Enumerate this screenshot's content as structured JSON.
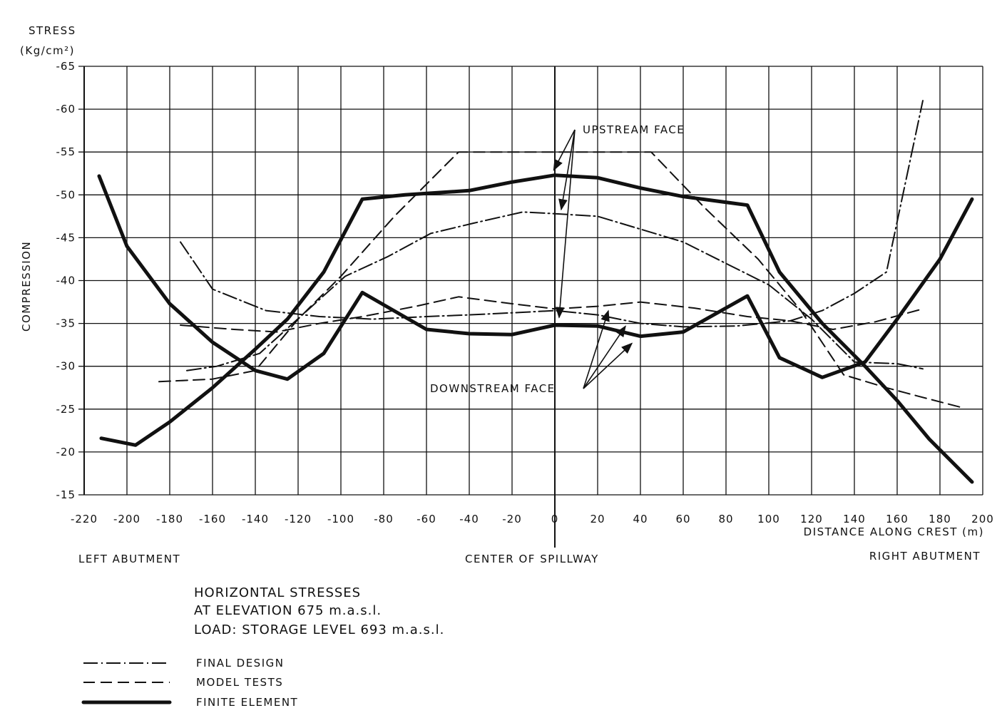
{
  "chart_data": {
    "type": "line",
    "ylabel_top": "STRESS",
    "ylabel_unit": "(Kg/cm²)",
    "ylabel_side": "COMPRESSION",
    "xlabel": "DISTANCE ALONG CREST (m)",
    "xlim": [
      -220,
      200
    ],
    "ylim": [
      -15,
      -65
    ],
    "x_ticks": [
      -220,
      -200,
      -180,
      -160,
      -140,
      -120,
      -100,
      -80,
      -60,
      -40,
      -20,
      0,
      20,
      40,
      60,
      80,
      100,
      120,
      140,
      160,
      180,
      200
    ],
    "y_ticks": [
      -65,
      -60,
      -55,
      -50,
      -45,
      -40,
      -35,
      -30,
      -25,
      -20,
      -15
    ],
    "x_tick_labels": [
      "-220",
      "-200",
      "-180",
      "-160",
      "-140",
      "-120",
      "-100",
      "-80",
      "-60",
      "-40",
      "-20",
      "0",
      "20",
      "40",
      "60",
      "80",
      "100",
      "120",
      "140",
      "160",
      "180",
      "200"
    ],
    "y_tick_labels": [
      "-65",
      "-60",
      "-55",
      "-50",
      "-45",
      "-40",
      "-35",
      "-30",
      "-25",
      "-20",
      "-15"
    ],
    "grid": true,
    "annotations": {
      "left_abutment": "LEFT ABUTMENT",
      "center": "CENTER OF SPILLWAY",
      "right_abutment": "RIGHT ABUTMENT",
      "upstream": "UPSTREAM FACE",
      "downstream": "DOWNSTREAM FACE"
    },
    "caption": [
      "HORIZONTAL STRESSES",
      "AT ELEVATION 675 m.a.s.l.",
      "LOAD: STORAGE LEVEL 693 m.a.s.l."
    ],
    "legend": [
      {
        "label": "FINAL DESIGN",
        "style": "dashdot"
      },
      {
        "label": "MODEL TESTS",
        "style": "dashed"
      },
      {
        "label": "FINITE ELEMENT",
        "style": "solid"
      }
    ],
    "series": [
      {
        "name": "FINAL DESIGN",
        "face": "upstream",
        "style": "dashdot",
        "x": [
          -175,
          -160,
          -135,
          -110,
          -85,
          -60,
          -40,
          -15,
          0,
          20,
          40,
          60,
          85,
          110,
          125,
          140,
          155,
          172
        ],
        "y": [
          -44.5,
          -39,
          -36.5,
          -35.8,
          -35.5,
          -35.8,
          -36,
          -36.3,
          -36.5,
          -36,
          -35,
          -34.6,
          -34.7,
          -35.3,
          -36.5,
          -38.5,
          -41,
          -61
        ]
      },
      {
        "name": "FINAL DESIGN",
        "face": "downstream",
        "style": "dashdot",
        "x": [
          -172,
          -158,
          -138,
          -118,
          -98,
          -78,
          -58,
          -38,
          -15,
          0,
          20,
          40,
          60,
          80,
          100,
          120,
          140,
          160,
          172
        ],
        "y": [
          -29.5,
          -30,
          -31.5,
          -36,
          -40.5,
          -42.8,
          -45.5,
          -46.7,
          -48,
          -47.8,
          -47.5,
          -46,
          -44.5,
          -42,
          -39.5,
          -35.5,
          -30.5,
          -30.3,
          -29.7
        ]
      },
      {
        "name": "MODEL TESTS",
        "face": "upstream",
        "style": "dashed",
        "x": [
          -185,
          -160,
          -140,
          -120,
          -100,
          -75,
          -45,
          0,
          45,
          70,
          95,
          115,
          135,
          155,
          170,
          190
        ],
        "y": [
          -28.2,
          -28.5,
          -29.5,
          -35.5,
          -40.5,
          -47.5,
          -55,
          -55,
          -55,
          -48.5,
          -42.5,
          -36.5,
          -29,
          -27.5,
          -26.5,
          -25.2
        ]
      },
      {
        "name": "MODEL TESTS",
        "face": "downstream",
        "style": "dashed",
        "x": [
          -175,
          -150,
          -130,
          -110,
          -90,
          -65,
          -45,
          -20,
          0,
          20,
          40,
          65,
          90,
          110,
          130,
          150,
          172
        ],
        "y": [
          -34.8,
          -34.3,
          -34,
          -35,
          -35.8,
          -37,
          -38.1,
          -37.3,
          -36.7,
          -37,
          -37.5,
          -36.8,
          -35.8,
          -35.3,
          -34.3,
          -35.2,
          -36.7
        ]
      },
      {
        "name": "FINITE ELEMENT",
        "face": "upstream",
        "style": "solid",
        "x": [
          -213,
          -200,
          -180,
          -160,
          -140,
          -125,
          -108,
          -90,
          -60,
          -40,
          -20,
          0,
          20,
          40,
          60,
          90,
          105,
          125,
          145,
          160,
          180,
          195
        ],
        "y": [
          -52.2,
          -44,
          -37.3,
          -32.8,
          -29.5,
          -28.5,
          -31.5,
          -38.6,
          -34.3,
          -33.8,
          -33.7,
          -34.8,
          -34.7,
          -33.5,
          -34,
          -38.2,
          -31,
          -28.7,
          -30.5,
          -35.5,
          -42.5,
          -49.5
        ]
      },
      {
        "name": "FINITE ELEMENT",
        "face": "downstream",
        "style": "solid",
        "x": [
          -212,
          -196,
          -180,
          -160,
          -140,
          -125,
          -108,
          -90,
          -70,
          -40,
          -20,
          0,
          20,
          40,
          60,
          90,
          105,
          125,
          145,
          160,
          175,
          195
        ],
        "y": [
          -21.6,
          -20.8,
          -23.5,
          -27.5,
          -32,
          -35.5,
          -41,
          -49.5,
          -50,
          -50.5,
          -51.5,
          -52.3,
          -52,
          -50.8,
          -49.8,
          -48.8,
          -41,
          -35,
          -30,
          -26,
          -21.5,
          -16.5
        ]
      }
    ]
  }
}
